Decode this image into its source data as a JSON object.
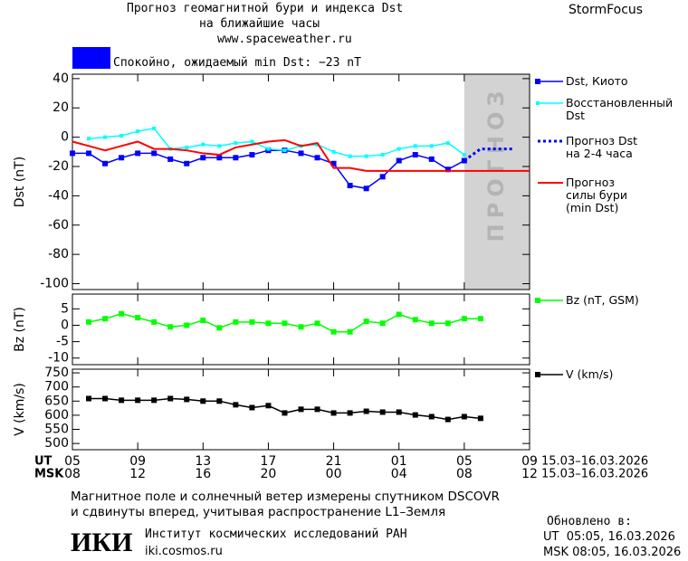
{
  "header": {
    "title_line1": "Прогноз геомагнитной бури и индекса Dst",
    "title_line2": "на ближайшие часы",
    "url": "www.spaceweather.ru",
    "brand": "StormFocus",
    "status": "Спокойно, ожидаемый min Dst: −23 nT",
    "status_color": "#0000ff"
  },
  "x_axis": {
    "ut_label": "UT",
    "msk_label": "MSK",
    "ut": [
      "05",
      null,
      null,
      null,
      "09",
      null,
      null,
      null,
      "13",
      null,
      null,
      null,
      "17",
      null,
      null,
      null,
      "21",
      null,
      null,
      null,
      "01",
      null,
      null,
      null,
      "05",
      null,
      null,
      null,
      "09"
    ],
    "msk": [
      "08",
      null,
      null,
      null,
      "12",
      null,
      null,
      null,
      "16",
      null,
      null,
      null,
      "20",
      null,
      null,
      null,
      "00",
      null,
      null,
      null,
      "04",
      null,
      null,
      null,
      "08",
      null,
      null,
      null,
      "12"
    ],
    "ut_dates": "15.03–16.03.2026",
    "msk_dates": "15.03–16.03.2026"
  },
  "chart_data": [
    {
      "type": "line",
      "ylabel": "Dst (nT)",
      "ylim": [
        -104,
        43
      ],
      "yticks": [
        40,
        20,
        0,
        -20,
        -40,
        -60,
        -80,
        -100
      ],
      "forecast_label": "ПРОГНОЗ",
      "forecast_shade": "#d3d3d3",
      "series": [
        {
          "name": "Dst, Киото",
          "color": "#0000ff",
          "style": "markers",
          "values": [
            -11,
            -11,
            -18,
            -14,
            -11,
            -11,
            -15,
            -18,
            -14,
            -14,
            -14,
            -12,
            -9,
            -9,
            -11,
            -14,
            -18,
            -33,
            -35,
            -27,
            -16,
            -12,
            -15,
            -22,
            -16,
            null,
            null,
            null,
            null
          ]
        },
        {
          "name": "Восстановленный\nDst",
          "color": "#00ffff",
          "style": "small-markers",
          "values": [
            null,
            -1,
            0,
            1,
            4,
            6,
            -8,
            -7,
            -5,
            -6,
            -4,
            -3,
            -8,
            -9,
            -6,
            -5,
            -10,
            -13,
            -13,
            -12,
            -8,
            -6,
            -6,
            -4,
            -12,
            null,
            null,
            null,
            null
          ]
        },
        {
          "name": "Прогноз Dst\nна 2-4 часа",
          "color": "#0000ff",
          "style": "dotted",
          "forecast": true,
          "values": [
            null,
            null,
            null,
            null,
            null,
            null,
            null,
            null,
            null,
            null,
            null,
            null,
            null,
            null,
            null,
            null,
            null,
            null,
            null,
            null,
            null,
            null,
            null,
            null,
            -16,
            -8,
            -8,
            -8,
            null
          ]
        },
        {
          "name": "Прогноз\nсилы бури\n(min Dst)",
          "color": "#ff0000",
          "style": "line",
          "values": [
            -3,
            -6,
            -9,
            -6,
            -3,
            -8,
            -8,
            -9,
            -11,
            -12,
            -7,
            -5,
            -3,
            -2,
            -6,
            -4,
            -21,
            -21,
            -23,
            -23,
            -23,
            -23,
            -23,
            -23,
            -23,
            -23,
            -23,
            -23,
            -23
          ]
        }
      ]
    },
    {
      "type": "line",
      "ylabel": "Bz (nT)",
      "ylim": [
        -12,
        9.5
      ],
      "yticks": [
        5,
        0,
        -5,
        -10
      ],
      "series": [
        {
          "name": "Bz (nT, GSM)",
          "color": "#00ff00",
          "style": "markers",
          "values": [
            null,
            1,
            2,
            3.5,
            2.3,
            1,
            -0.5,
            0,
            1.5,
            -0.8,
            1,
            1,
            0.6,
            0.6,
            -0.5,
            0.6,
            -2,
            -2,
            1.2,
            0.6,
            3.3,
            1.7,
            0.6,
            0.6,
            2,
            2,
            null,
            null,
            null
          ]
        }
      ]
    },
    {
      "type": "line",
      "ylabel": "V (km/s)",
      "ylim": [
        478,
        763
      ],
      "yticks": [
        750,
        700,
        650,
        600,
        550,
        500
      ],
      "series": [
        {
          "name": "V (km/s)",
          "color": "#000000",
          "style": "markers",
          "values": [
            null,
            659,
            659,
            653,
            653,
            653,
            659,
            656,
            650,
            650,
            637,
            627,
            634,
            608,
            621,
            621,
            608,
            608,
            614,
            611,
            611,
            601,
            595,
            585,
            595,
            589,
            null,
            null,
            null
          ]
        }
      ]
    }
  ],
  "footer": {
    "note_line1": "Магнитное поле и солнечный ветер измерены спутником DSCOVR",
    "note_line2": "и сдвинуты вперед, учитывая распространение L1–Земля",
    "logo": "ИКИ",
    "institute": "Институт космических исследований РАН",
    "institute_url": "iki.cosmos.ru",
    "updated": "Обновлено в:",
    "updated_ut": "UT  05:05, 16.03.2026",
    "updated_msk": "MSK 08:05, 16.03.2026"
  }
}
